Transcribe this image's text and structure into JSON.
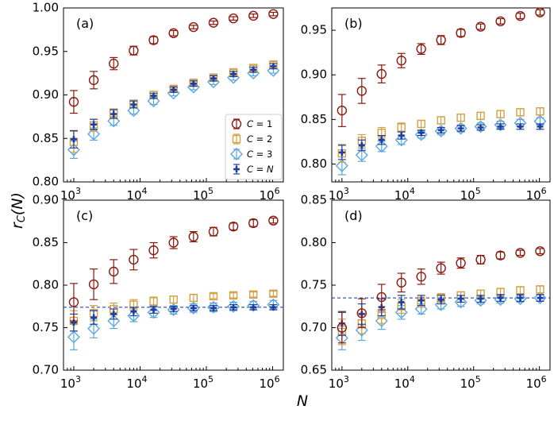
{
  "figure": {
    "xlabel": "N",
    "ylabel": "r_C(N)"
  },
  "chart_data": [
    {
      "type": "scatter",
      "panel": "(a)",
      "xscale": "log",
      "xlim": [
        700,
        1450000
      ],
      "ylim": [
        0.8,
        1.0
      ],
      "yticks": [
        0.8,
        0.85,
        0.9,
        0.95,
        1.0
      ],
      "ytick_labels": [
        "0.80",
        "0.85",
        "0.90",
        "0.95",
        "1.00"
      ],
      "legend": {
        "placement": "right",
        "entries": [
          "C = 1",
          "C = 2",
          "C = 3",
          "C = N"
        ]
      },
      "hline": null,
      "x": [
        1000,
        2000,
        4000,
        8000,
        16000,
        32000,
        64000,
        128000,
        256000,
        512000,
        1024000
      ],
      "series": [
        {
          "key": "C1",
          "values": [
            0.892,
            0.917,
            0.936,
            0.951,
            0.963,
            0.971,
            0.978,
            0.983,
            0.988,
            0.991,
            0.993
          ],
          "errors": [
            0.013,
            0.01,
            0.007,
            0.005,
            0.004,
            0.003,
            0.002,
            0.002,
            0.002,
            0.002,
            0.002
          ]
        },
        {
          "key": "C2",
          "values": [
            0.846,
            0.865,
            0.879,
            0.89,
            0.9,
            0.907,
            0.914,
            0.92,
            0.926,
            0.931,
            0.935
          ],
          "errors": [
            0.012,
            0.007,
            0.005,
            0.004,
            0.004,
            0.003,
            0.003,
            0.003,
            0.003,
            0.003,
            0.003
          ]
        },
        {
          "key": "C3",
          "values": [
            0.837,
            0.855,
            0.87,
            0.882,
            0.893,
            0.902,
            0.909,
            0.915,
            0.92,
            0.925,
            0.928
          ],
          "errors": [
            0.01,
            0.007,
            0.005,
            0.004,
            0.004,
            0.003,
            0.003,
            0.003,
            0.003,
            0.003,
            0.003
          ]
        },
        {
          "key": "CN",
          "values": [
            0.849,
            0.866,
            0.878,
            0.889,
            0.899,
            0.906,
            0.913,
            0.919,
            0.924,
            0.929,
            0.933
          ],
          "errors": [
            0.01,
            0.006,
            0.005,
            0.004,
            0.003,
            0.003,
            0.003,
            0.003,
            0.003,
            0.003,
            0.003
          ]
        }
      ]
    },
    {
      "type": "scatter",
      "panel": "(b)",
      "xscale": "log",
      "xlim": [
        700,
        1450000
      ],
      "ylim": [
        0.78,
        0.975
      ],
      "yticks": [
        0.8,
        0.85,
        0.9,
        0.95
      ],
      "ytick_labels": [
        "0.80",
        "0.85",
        "0.90",
        "0.95"
      ],
      "hline": null,
      "x": [
        1000,
        2000,
        4000,
        8000,
        16000,
        32000,
        64000,
        128000,
        256000,
        512000,
        1024000
      ],
      "series": [
        {
          "key": "C1",
          "values": [
            0.86,
            0.882,
            0.901,
            0.916,
            0.929,
            0.939,
            0.947,
            0.954,
            0.96,
            0.966,
            0.97
          ],
          "errors": [
            0.018,
            0.014,
            0.01,
            0.008,
            0.006,
            0.005,
            0.004,
            0.003,
            0.003,
            0.003,
            0.003
          ]
        },
        {
          "key": "C2",
          "values": [
            0.812,
            0.826,
            0.835,
            0.841,
            0.845,
            0.849,
            0.852,
            0.854,
            0.856,
            0.858,
            0.859
          ],
          "errors": [
            0.01,
            0.007,
            0.006,
            0.005,
            0.004,
            0.004,
            0.004,
            0.004,
            0.004,
            0.004,
            0.004
          ]
        },
        {
          "key": "C3",
          "values": [
            0.798,
            0.81,
            0.82,
            0.827,
            0.833,
            0.837,
            0.84,
            0.842,
            0.844,
            0.846,
            0.848
          ],
          "errors": [
            0.01,
            0.007,
            0.006,
            0.005,
            0.004,
            0.004,
            0.004,
            0.004,
            0.004,
            0.004,
            0.004
          ]
        },
        {
          "key": "CN",
          "values": [
            0.813,
            0.821,
            0.827,
            0.832,
            0.835,
            0.838,
            0.84,
            0.841,
            0.842,
            0.842,
            0.842
          ],
          "errors": [
            0.008,
            0.006,
            0.005,
            0.004,
            0.003,
            0.003,
            0.003,
            0.003,
            0.003,
            0.003,
            0.003
          ]
        }
      ]
    },
    {
      "type": "scatter",
      "panel": "(c)",
      "xscale": "log",
      "xlim": [
        700,
        1450000
      ],
      "ylim": [
        0.7,
        0.9
      ],
      "yticks": [
        0.7,
        0.75,
        0.8,
        0.85,
        0.9
      ],
      "ytick_labels": [
        "0.70",
        "0.75",
        "0.80",
        "0.85",
        "0.90"
      ],
      "hline": 0.774,
      "x": [
        1000,
        2000,
        4000,
        8000,
        16000,
        32000,
        64000,
        128000,
        256000,
        512000,
        1024000
      ],
      "series": [
        {
          "key": "C1",
          "values": [
            0.78,
            0.801,
            0.816,
            0.83,
            0.841,
            0.85,
            0.857,
            0.863,
            0.869,
            0.873,
            0.876
          ],
          "errors": [
            0.022,
            0.018,
            0.014,
            0.012,
            0.009,
            0.007,
            0.006,
            0.005,
            0.004,
            0.004,
            0.003
          ]
        },
        {
          "key": "C2",
          "values": [
            0.758,
            0.767,
            0.772,
            0.777,
            0.781,
            0.783,
            0.785,
            0.787,
            0.788,
            0.789,
            0.79
          ],
          "errors": [
            0.012,
            0.009,
            0.007,
            0.006,
            0.005,
            0.004,
            0.004,
            0.003,
            0.003,
            0.003,
            0.003
          ]
        },
        {
          "key": "C3",
          "values": [
            0.739,
            0.749,
            0.758,
            0.764,
            0.768,
            0.771,
            0.773,
            0.774,
            0.775,
            0.776,
            0.777
          ],
          "errors": [
            0.015,
            0.011,
            0.009,
            0.007,
            0.006,
            0.005,
            0.005,
            0.005,
            0.005,
            0.005,
            0.005
          ]
        },
        {
          "key": "CN",
          "values": [
            0.756,
            0.762,
            0.766,
            0.769,
            0.771,
            0.772,
            0.773,
            0.773,
            0.774,
            0.774,
            0.774
          ],
          "errors": [
            0.01,
            0.008,
            0.006,
            0.005,
            0.004,
            0.003,
            0.003,
            0.003,
            0.003,
            0.003,
            0.003
          ]
        }
      ]
    },
    {
      "type": "scatter",
      "panel": "(d)",
      "xscale": "log",
      "xlim": [
        700,
        1450000
      ],
      "ylim": [
        0.65,
        0.85
      ],
      "yticks": [
        0.65,
        0.7,
        0.75,
        0.8,
        0.85
      ],
      "ytick_labels": [
        "0.65",
        "0.70",
        "0.75",
        "0.80",
        "0.85"
      ],
      "hline": 0.735,
      "x": [
        1000,
        2000,
        4000,
        8000,
        16000,
        32000,
        64000,
        128000,
        256000,
        512000,
        1024000
      ],
      "series": [
        {
          "key": "C1",
          "values": [
            0.7,
            0.717,
            0.736,
            0.753,
            0.76,
            0.77,
            0.776,
            0.78,
            0.785,
            0.788,
            0.79
          ],
          "errors": [
            0.018,
            0.017,
            0.015,
            0.011,
            0.009,
            0.007,
            0.006,
            0.005,
            0.004,
            0.003,
            0.003
          ]
        },
        {
          "key": "C2",
          "values": [
            0.695,
            0.705,
            0.715,
            0.725,
            0.73,
            0.735,
            0.738,
            0.74,
            0.742,
            0.744,
            0.745
          ],
          "errors": [
            0.015,
            0.012,
            0.01,
            0.008,
            0.006,
            0.005,
            0.004,
            0.004,
            0.004,
            0.004,
            0.004
          ]
        },
        {
          "key": "C3",
          "values": [
            0.688,
            0.697,
            0.708,
            0.718,
            0.722,
            0.727,
            0.73,
            0.732,
            0.733,
            0.734,
            0.735
          ],
          "errors": [
            0.014,
            0.012,
            0.01,
            0.008,
            0.006,
            0.005,
            0.005,
            0.004,
            0.004,
            0.004,
            0.004
          ]
        },
        {
          "key": "CN",
          "values": [
            0.705,
            0.716,
            0.724,
            0.73,
            0.732,
            0.733,
            0.734,
            0.734,
            0.735,
            0.735,
            0.735
          ],
          "errors": [
            0.014,
            0.012,
            0.01,
            0.008,
            0.006,
            0.005,
            0.004,
            0.004,
            0.004,
            0.004,
            0.004
          ]
        }
      ]
    }
  ],
  "legend_labels": {
    "C1": "C = 1",
    "C2": "C = 2",
    "C3": "C = 3",
    "CN": "C = N"
  },
  "colors": {
    "C1": "#8b1a0e",
    "C2": "#d4a044",
    "C3": "#5aa8dc",
    "CN": "#1f3fa0",
    "hline": "#2244bb"
  },
  "xticks": [
    {
      "value": 1000,
      "base": "10",
      "exp": "3"
    },
    {
      "value": 10000,
      "base": "10",
      "exp": "4"
    },
    {
      "value": 100000,
      "base": "10",
      "exp": "5"
    },
    {
      "value": 1000000,
      "base": "10",
      "exp": "6"
    }
  ]
}
